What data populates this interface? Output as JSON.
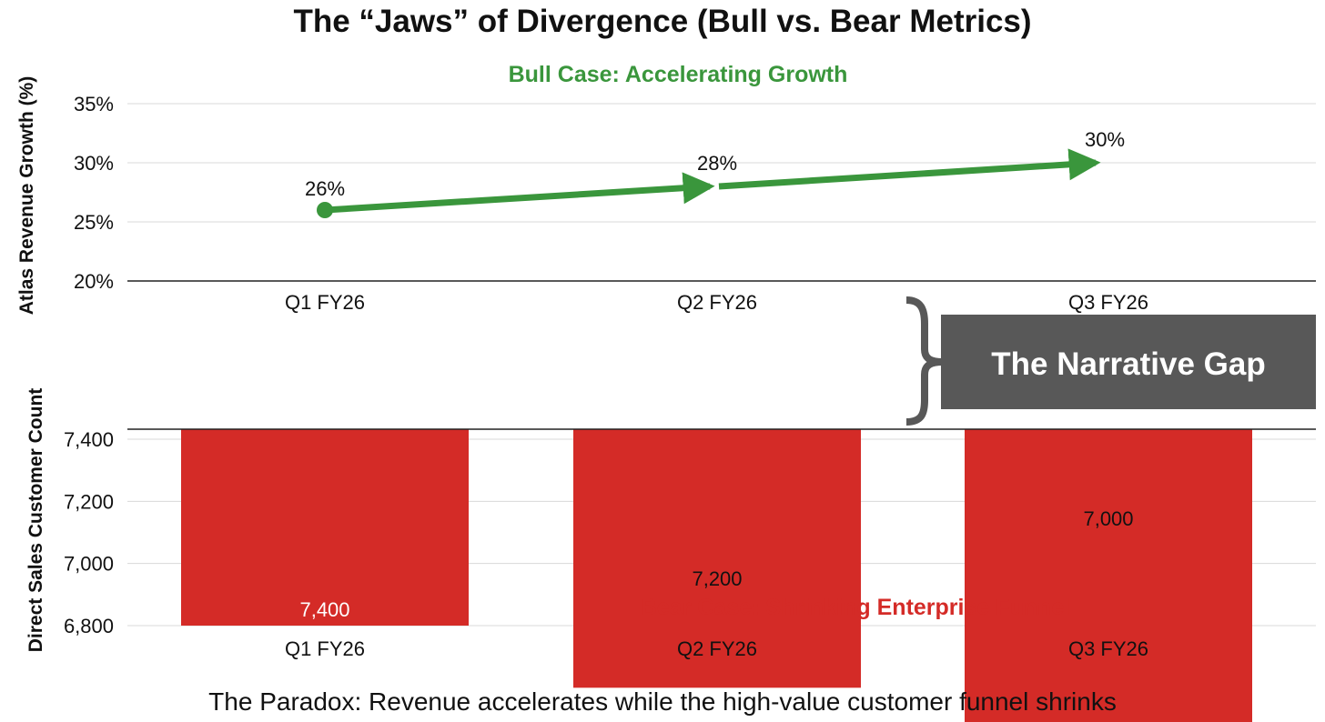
{
  "title": "The “Jaws” of Divergence (Bull vs. Bear Metrics)",
  "footnote": "The Paradox: Revenue accelerates while the high-value customer funnel shrinks",
  "callout": "The Narrative Gap",
  "colors": {
    "bull": "#3a963c",
    "bear": "#d42b27",
    "callout_bg": "#585858",
    "axis": "#222222",
    "grid": "#d8d8d8"
  },
  "chart_data": [
    {
      "type": "line",
      "subtitle": "Bull Case: Accelerating Growth",
      "ylabel": "Atlas Revenue Growth (%)",
      "categories": [
        "Q1 FY26",
        "Q2 FY26",
        "Q3 FY26"
      ],
      "values": [
        26,
        28,
        30
      ],
      "data_labels": [
        "26%",
        "28%",
        "30%"
      ],
      "yticks": [
        "20%",
        "25%",
        "30%",
        "35%"
      ],
      "ylim": [
        20,
        35
      ],
      "grid": true
    },
    {
      "type": "bar",
      "subtitle": "Bear Case: Shrinking Enterprise Funnel",
      "ylabel": "Direct Sales Customer Count",
      "categories": [
        "Q1 FY26",
        "Q2 FY26",
        "Q3 FY26"
      ],
      "values": [
        7400,
        7200,
        7000
      ],
      "data_labels": [
        "7,400",
        "7,200",
        "7,000"
      ],
      "yticks": [
        "6,800",
        "7,000",
        "7,200",
        "7,400"
      ],
      "grid": true
    }
  ]
}
